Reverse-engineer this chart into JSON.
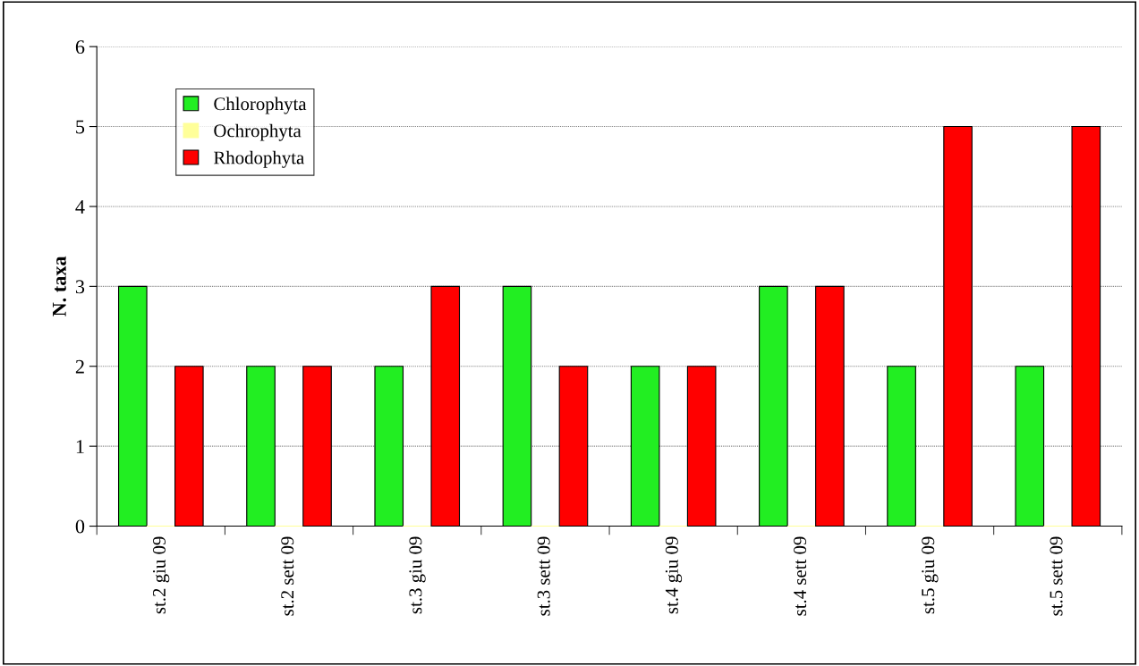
{
  "chart_data": {
    "type": "bar",
    "ylabel": "N. taxa",
    "categories": [
      "st.2 giu 09",
      "st.2 sett 09",
      "st.3 giu 09",
      "st.3 sett 09",
      "st.4 giu 09",
      "st.4 sett 09",
      "st.5 giu 09",
      "st.5 sett 09"
    ],
    "series": [
      {
        "name": "Chlorophyta",
        "color": "#22ee22",
        "values": [
          3,
          2,
          2,
          3,
          2,
          3,
          2,
          2
        ]
      },
      {
        "name": "Ochrophyta",
        "color": "#ffff99",
        "values": [
          0,
          0,
          0,
          0,
          0,
          0,
          0,
          0
        ]
      },
      {
        "name": "Rhodophyta",
        "color": "#ff0000",
        "values": [
          2,
          2,
          3,
          2,
          2,
          3,
          5,
          5
        ]
      }
    ],
    "ylim": [
      0,
      6
    ],
    "yticks": [
      0,
      1,
      2,
      3,
      4,
      5,
      6
    ],
    "grid": "y",
    "legend": "top left"
  }
}
